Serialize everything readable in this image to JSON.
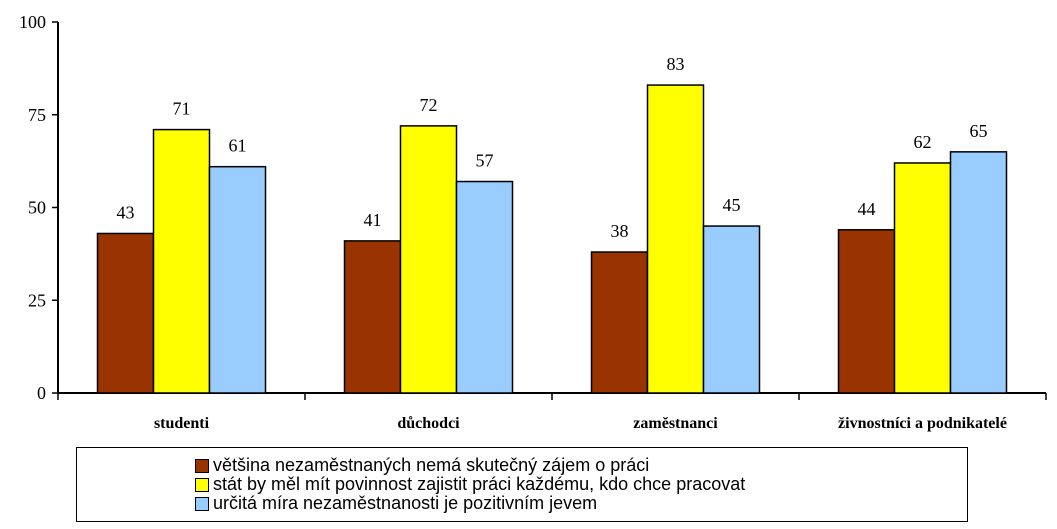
{
  "chart_data": {
    "type": "bar",
    "categories": [
      "studenti",
      "důchodci",
      "zaměstnanci",
      "živnostníci a podnikatelé"
    ],
    "series": [
      {
        "name": "většina nezaměstnaných nemá skutečný zájem o práci",
        "color": "#993300",
        "values": [
          43,
          41,
          38,
          44
        ]
      },
      {
        "name": "stát by měl mít povinnost zajistit práci každému, kdo chce pracovat",
        "color": "#ffff00",
        "values": [
          71,
          72,
          83,
          62
        ]
      },
      {
        "name": "určitá míra nezaměstnanosti je pozitivním jevem",
        "color": "#99ccff",
        "values": [
          61,
          57,
          45,
          65
        ]
      }
    ],
    "ylim": [
      0,
      100
    ],
    "yticks": [
      0,
      25,
      50,
      75,
      100
    ],
    "grid": false,
    "legend_position": "bottom"
  }
}
